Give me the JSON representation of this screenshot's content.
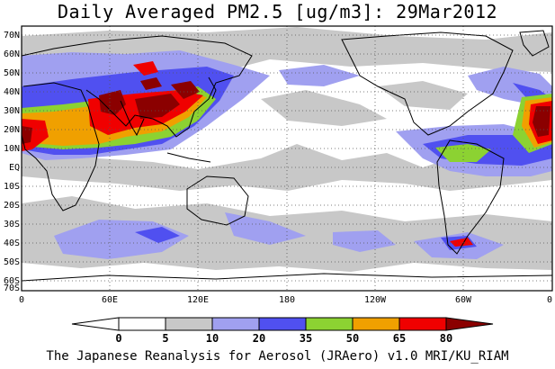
{
  "title": "Daily Averaged PM2.5 [ug/m3]: 29Mar2012",
  "credit": "The Japanese Reanalysis for Aerosol (JRAero) v1.0 MRI/KU_RIAM",
  "map": {
    "lat_labels": [
      "70N",
      "60N",
      "50N",
      "40N",
      "30N",
      "20N",
      "10N",
      "EQ",
      "10S",
      "20S",
      "30S",
      "40S",
      "50S",
      "60S",
      "70S"
    ],
    "lon_labels": [
      "0",
      "60E",
      "120E",
      "180",
      "120W",
      "60W",
      "0"
    ]
  },
  "colorbar": {
    "ticks": [
      "0",
      "5",
      "10",
      "20",
      "35",
      "50",
      "65",
      "80"
    ],
    "colors": [
      "#ffffff",
      "#c8c8c8",
      "#a0a0f0",
      "#5050f0",
      "#8cd232",
      "#f0a000",
      "#f00000",
      "#8b0000"
    ]
  },
  "chart_data": {
    "type": "heatmap",
    "title": "Daily Averaged PM2.5 [ug/m3]: 29Mar2012",
    "levels": [
      0,
      5,
      10,
      20,
      35,
      50,
      65,
      80
    ],
    "xlim": [
      "0",
      "0"
    ],
    "ylim": [
      "70S",
      "70N"
    ],
    "source": "The Japanese Reanalysis for Aerosol (JRAero) v1.0 MRI/KU_RIAM"
  }
}
